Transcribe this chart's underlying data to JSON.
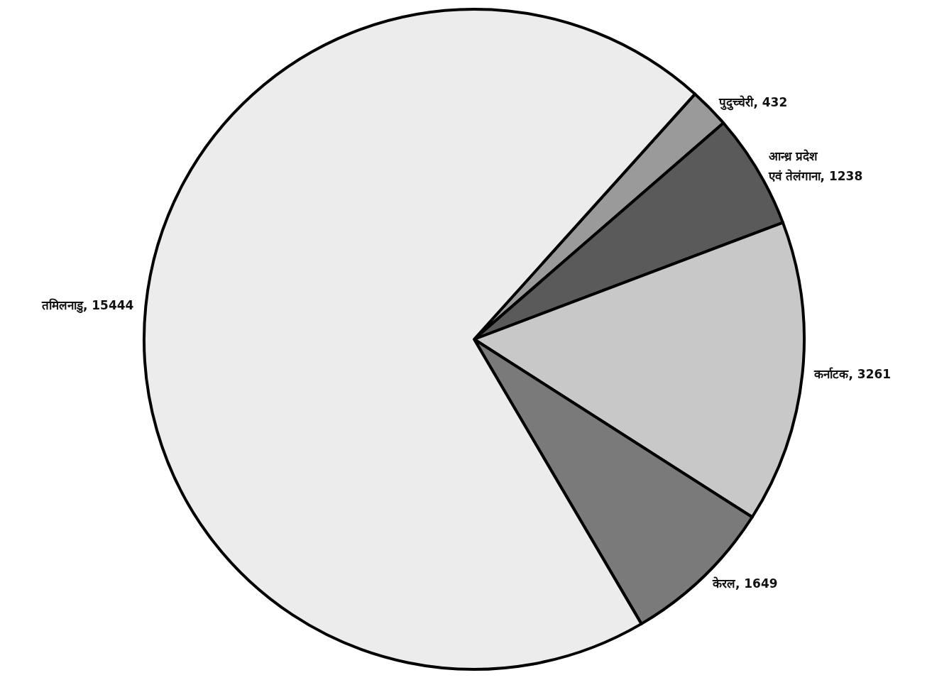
{
  "chart_data": {
    "type": "pie",
    "categories": [
      "पुदुच्चेरी",
      "आन्ध्र प्रदेश\nएवं तेलंगाना",
      "कर्नाटक",
      "केरल",
      "तमिलनाडु"
    ],
    "values": [
      432,
      1238,
      3261,
      1649,
      15444
    ],
    "value_labels": [
      ", 432",
      ", 1238",
      ", 3261",
      ", 1649",
      ", 15444"
    ],
    "colors": [
      "#9a9a9a",
      "#5a5a5a",
      "#c8c8c8",
      "#7a7a7a",
      "#ececec"
    ]
  }
}
